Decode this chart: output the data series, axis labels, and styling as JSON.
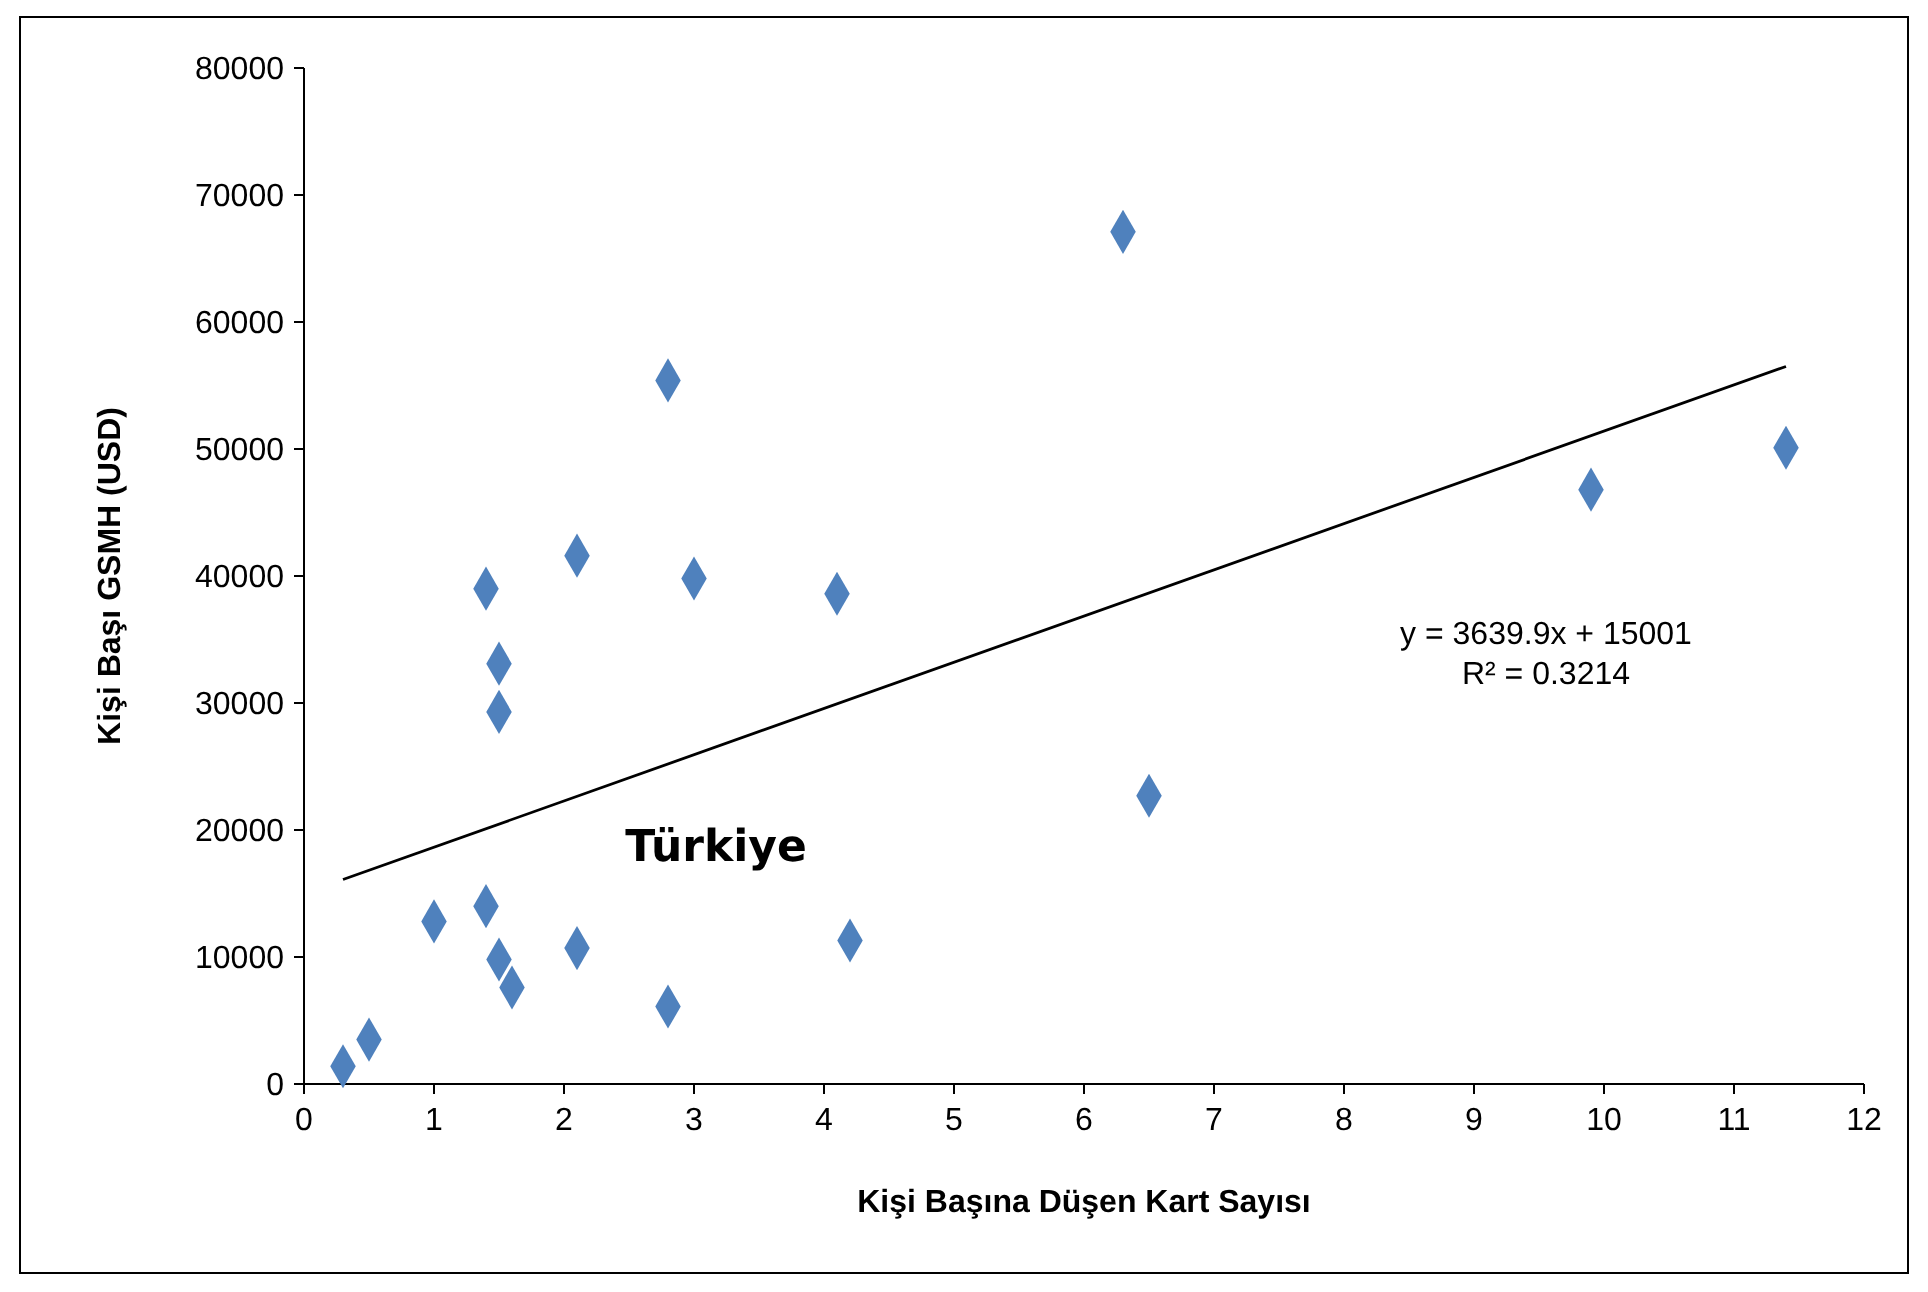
{
  "chart_data": {
    "type": "scatter",
    "xlabel": "Kişi Başına Düşen Kart Sayısı",
    "ylabel": "Kişi Başı GSMH (USD)",
    "xlim": [
      0,
      12
    ],
    "xticks": [
      0,
      1,
      2,
      3,
      4,
      5,
      6,
      7,
      8,
      9,
      10,
      11,
      12
    ],
    "ylim": [
      0,
      80000
    ],
    "yticks": [
      0,
      10000,
      20000,
      30000,
      40000,
      50000,
      60000,
      70000,
      80000
    ],
    "grid": false,
    "marker": "diamond",
    "series": [
      {
        "color": "#4f81bd",
        "x": [
          0.3,
          0.5,
          1.0,
          1.4,
          1.4,
          1.5,
          1.5,
          1.5,
          1.6,
          2.1,
          2.1,
          2.8,
          2.8,
          3.0,
          4.1,
          4.2,
          6.3,
          6.5,
          9.9,
          11.4
        ],
        "values": [
          1400,
          3500,
          12800,
          14000,
          39000,
          33100,
          29300,
          9800,
          7600,
          41600,
          10700,
          55400,
          6100,
          39800,
          38600,
          11300,
          67100,
          22700,
          46800,
          50100
        ]
      },
      {
        "type": "line",
        "color": "#000000",
        "x": [
          0.3,
          11.4
        ],
        "values": [
          16100,
          56500
        ],
        "marker": "none",
        "line_style": "solid"
      }
    ],
    "annotations": [
      "Türkiye",
      "y = 3639.9x + 15001\nR² = 0.3214"
    ]
  }
}
